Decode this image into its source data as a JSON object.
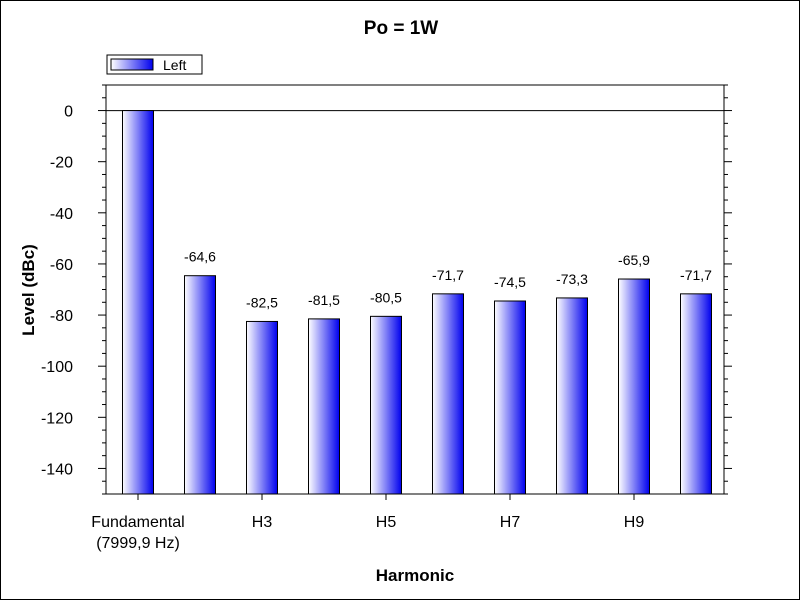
{
  "chart_data": {
    "type": "bar",
    "title": "Po = 1W",
    "xlabel": "Harmonic",
    "ylabel": "Level (dBc)",
    "ylim": [
      -150,
      10
    ],
    "yticks": [
      0,
      -20,
      -40,
      -60,
      -80,
      -100,
      -120,
      -140
    ],
    "categories": [
      "Fundamental\n(7999,9 Hz)",
      "",
      "H3",
      "",
      "H5",
      "",
      "H7",
      "",
      "H9",
      ""
    ],
    "series": [
      {
        "name": "Left",
        "color": "#0000ee",
        "values": [
          0,
          -64.6,
          -82.5,
          -81.5,
          -80.5,
          -71.7,
          -74.5,
          -73.3,
          -65.9,
          -71.7
        ],
        "data_labels": [
          "",
          "-64,6",
          "-82,5",
          "-81,5",
          "-80,5",
          "-71,7",
          "-74,5",
          "-73,3",
          "-65,9",
          "-71,7"
        ]
      }
    ],
    "legend_position": "top-left",
    "grid": false
  }
}
